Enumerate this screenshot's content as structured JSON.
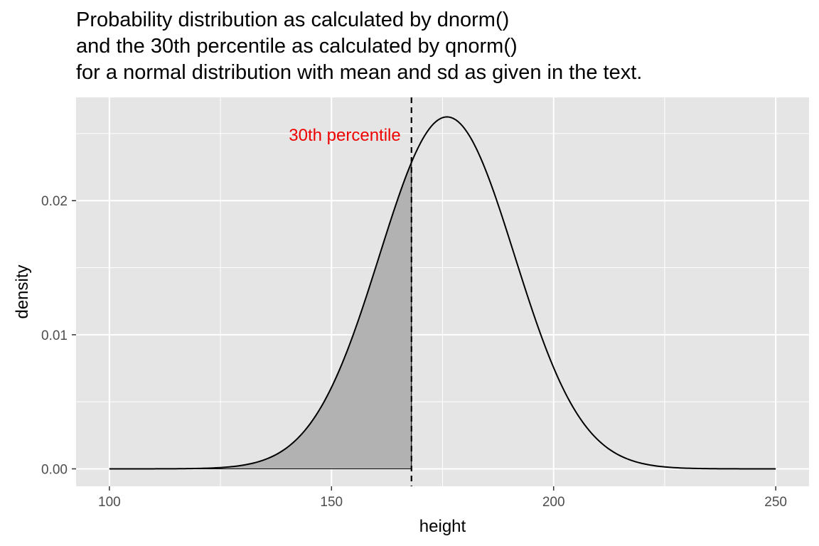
{
  "chart_data": {
    "type": "area",
    "title_lines": [
      "Probability distribution as calculated by dnorm()",
      "and the 30th percentile as calculated by qnorm()",
      "for a normal distribution with mean and sd as given in the text."
    ],
    "xlabel": "height",
    "ylabel": "density",
    "xlim": [
      92.5,
      257.5
    ],
    "ylim": [
      -0.0013,
      0.0277
    ],
    "x_ticks": [
      100,
      150,
      200,
      250
    ],
    "x_tick_labels": [
      "100",
      "150",
      "200",
      "250"
    ],
    "y_ticks": [
      0,
      0.01,
      0.02
    ],
    "y_tick_labels": [
      "0.00",
      "0.01",
      "0.02"
    ],
    "grid": true,
    "series": [
      {
        "distribution": "normal",
        "mean": 176,
        "sd": 15.2,
        "x_range": [
          100,
          250
        ],
        "line_color": "#000000"
      }
    ],
    "shaded_region": {
      "x_from": 100,
      "x_to": 168,
      "fill": "#b2b2b2"
    },
    "vline": {
      "x": 168,
      "linetype": "dashed",
      "color": "#000000"
    },
    "annotation": {
      "text": "30th percentile",
      "x": 168,
      "y": 0.0249,
      "color": "#ee0000"
    },
    "panel_background": "#e5e5e5",
    "grid_color": "#ffffff"
  }
}
